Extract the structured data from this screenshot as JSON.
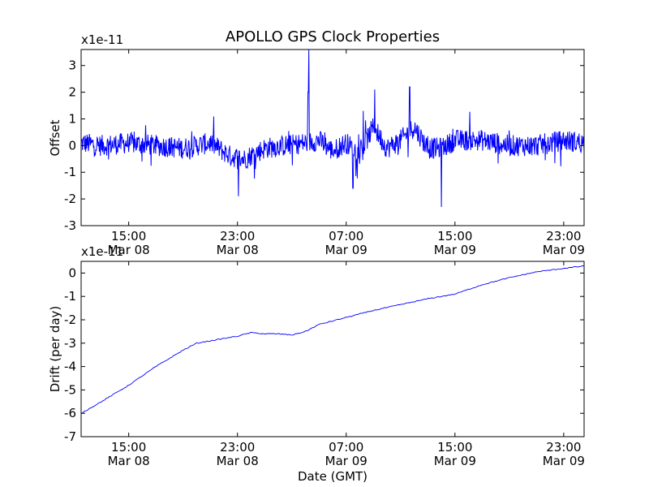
{
  "title": "APOLLO GPS Clock Properties",
  "chart_data": [
    {
      "type": "line",
      "title": "APOLLO GPS Clock Properties",
      "ylabel": "Offset",
      "xlabel": "",
      "offset_label": "x1e-11",
      "y_multiplier": 1e-11,
      "ylim": [
        -3,
        3.6
      ],
      "yticks": [
        -3,
        -2,
        -1,
        0,
        1,
        2,
        3
      ],
      "xlim": [
        "2014-03-08 11:30",
        "2014-03-10 00:30"
      ],
      "xticks": [
        {
          "at": "2014-03-08 15:00",
          "time": "15:00",
          "date": "Mar 08"
        },
        {
          "at": "2014-03-08 23:00",
          "time": "23:00",
          "date": "Mar 08"
        },
        {
          "at": "2014-03-09 07:00",
          "time": "07:00",
          "date": "Mar 09"
        },
        {
          "at": "2014-03-09 15:00",
          "time": "15:00",
          "date": "Mar 09"
        },
        {
          "at": "2014-03-09 23:00",
          "time": "23:00",
          "date": "Mar 09"
        }
      ],
      "grid": false,
      "series": [
        {
          "color": "#0000ff",
          "style": "noisy",
          "x": [
            "2014-03-08 11:30",
            "2014-03-08 13:00",
            "2014-03-08 15:00",
            "2014-03-08 17:00",
            "2014-03-08 19:00",
            "2014-03-08 21:00",
            "2014-03-08 22:30",
            "2014-03-08 23:30",
            "2014-03-09 01:00",
            "2014-03-09 02:30",
            "2014-03-09 04:00",
            "2014-03-09 05:00",
            "2014-03-09 06:00",
            "2014-03-09 07:00",
            "2014-03-09 08:00",
            "2014-03-09 09:00",
            "2014-03-09 10:00",
            "2014-03-09 11:00",
            "2014-03-09 12:00",
            "2014-03-09 13:00",
            "2014-03-09 14:00",
            "2014-03-09 15:00",
            "2014-03-09 17:00",
            "2014-03-09 19:00",
            "2014-03-09 21:00",
            "2014-03-09 23:00",
            "2014-03-10 00:30"
          ],
          "y": [
            0.1,
            0.0,
            0.1,
            0.0,
            -0.1,
            0.1,
            -0.4,
            -0.5,
            -0.1,
            0.0,
            0.1,
            0.2,
            -0.2,
            0.1,
            -0.3,
            0.7,
            -0.1,
            0.2,
            0.7,
            -0.1,
            -0.1,
            0.2,
            0.2,
            0.0,
            0.0,
            0.2,
            0.1
          ],
          "noise": 0.4,
          "spikes": [
            {
              "x": "2014-03-09 04:15",
              "y": 3.6
            },
            {
              "x": "2014-03-09 04:12",
              "y": 2.0
            },
            {
              "x": "2014-03-08 23:05",
              "y": -1.9
            },
            {
              "x": "2014-03-09 09:05",
              "y": 2.1
            },
            {
              "x": "2014-03-09 11:40",
              "y": 2.2
            },
            {
              "x": "2014-03-09 14:00",
              "y": -2.3
            },
            {
              "x": "2014-03-09 07:30",
              "y": -1.6
            },
            {
              "x": "2014-03-09 08:15",
              "y": 1.3
            }
          ]
        }
      ]
    },
    {
      "type": "line",
      "ylabel": "Drift (per day)",
      "xlabel": "Date (GMT)",
      "offset_label": "x1e-11",
      "y_multiplier": 1e-11,
      "ylim": [
        -7,
        0.5
      ],
      "yticks": [
        -7,
        -6,
        -5,
        -4,
        -3,
        -2,
        -1,
        0
      ],
      "xlim": [
        "2014-03-08 11:30",
        "2014-03-10 00:30"
      ],
      "xticks": [
        {
          "at": "2014-03-08 15:00",
          "time": "15:00",
          "date": "Mar 08"
        },
        {
          "at": "2014-03-08 23:00",
          "time": "23:00",
          "date": "Mar 08"
        },
        {
          "at": "2014-03-09 07:00",
          "time": "07:00",
          "date": "Mar 09"
        },
        {
          "at": "2014-03-09 15:00",
          "time": "15:00",
          "date": "Mar 09"
        },
        {
          "at": "2014-03-09 23:00",
          "time": "23:00",
          "date": "Mar 09"
        }
      ],
      "grid": false,
      "series": [
        {
          "color": "#0000ff",
          "style": "smooth",
          "x": [
            "2014-03-08 11:30",
            "2014-03-08 13:00",
            "2014-03-08 15:00",
            "2014-03-08 17:00",
            "2014-03-08 19:00",
            "2014-03-08 20:00",
            "2014-03-08 21:00",
            "2014-03-08 23:00",
            "2014-03-09 00:00",
            "2014-03-09 01:00",
            "2014-03-09 02:00",
            "2014-03-09 03:00",
            "2014-03-09 04:00",
            "2014-03-09 05:00",
            "2014-03-09 07:00",
            "2014-03-09 09:00",
            "2014-03-09 11:00",
            "2014-03-09 13:00",
            "2014-03-09 15:00",
            "2014-03-09 17:00",
            "2014-03-09 19:00",
            "2014-03-09 21:00",
            "2014-03-09 23:00",
            "2014-03-10 00:30"
          ],
          "y": [
            -6.0,
            -5.5,
            -4.8,
            -4.0,
            -3.3,
            -3.0,
            -2.9,
            -2.7,
            -2.55,
            -2.6,
            -2.6,
            -2.65,
            -2.5,
            -2.2,
            -1.9,
            -1.6,
            -1.35,
            -1.1,
            -0.9,
            -0.5,
            -0.2,
            0.05,
            0.2,
            0.3
          ]
        }
      ]
    }
  ]
}
